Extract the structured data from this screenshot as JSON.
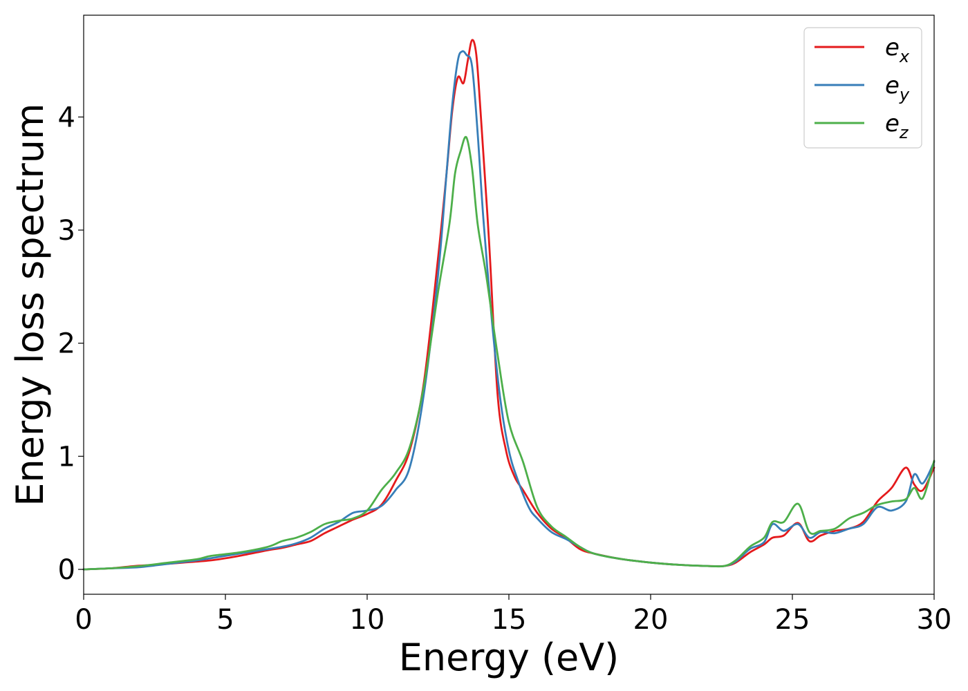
{
  "chart_data": {
    "type": "line",
    "title": "",
    "xlabel": "Energy (eV)",
    "ylabel": "Energy loss spectrum",
    "xlim": [
      0,
      30
    ],
    "ylim": [
      -0.22,
      4.9
    ],
    "xticks": [
      0,
      5,
      10,
      15,
      20,
      25,
      30
    ],
    "yticks": [
      0,
      1,
      2,
      3,
      4
    ],
    "grid": false,
    "legend_position": "top-right",
    "series": [
      {
        "name": "e",
        "subscript": "x",
        "color": "#e41a1c",
        "x": [
          0,
          1,
          1.8,
          2.5,
          3.5,
          4.5,
          5.5,
          6.5,
          7,
          7.5,
          8,
          8.5,
          9,
          9.5,
          10,
          10.5,
          11,
          11.5,
          12,
          12.5,
          12.8,
          13.0,
          13.2,
          13.4,
          13.55,
          13.7,
          13.85,
          14.0,
          14.3,
          14.6,
          14.9,
          15.2,
          15.5,
          16,
          16.5,
          17,
          17.5,
          18,
          19,
          20,
          21,
          22,
          22.6,
          23,
          23.5,
          24,
          24.3,
          24.7,
          25.2,
          25.6,
          26,
          26.5,
          27,
          27.5,
          28,
          28.5,
          29,
          29.3,
          29.6,
          30
        ],
        "y": [
          0,
          0.01,
          0.03,
          0.04,
          0.06,
          0.08,
          0.12,
          0.17,
          0.19,
          0.22,
          0.25,
          0.32,
          0.38,
          0.44,
          0.49,
          0.57,
          0.78,
          1.05,
          1.65,
          2.75,
          3.5,
          4.05,
          4.35,
          4.3,
          4.5,
          4.68,
          4.55,
          4.05,
          2.9,
          1.55,
          1.05,
          0.82,
          0.7,
          0.5,
          0.36,
          0.28,
          0.18,
          0.14,
          0.09,
          0.06,
          0.04,
          0.03,
          0.03,
          0.06,
          0.15,
          0.22,
          0.28,
          0.3,
          0.41,
          0.25,
          0.3,
          0.34,
          0.36,
          0.42,
          0.6,
          0.72,
          0.9,
          0.75,
          0.7,
          0.9
        ]
      },
      {
        "name": "e",
        "subscript": "y",
        "color": "#377eb8",
        "x": [
          0,
          1,
          2,
          3,
          4,
          5,
          6,
          7,
          7.5,
          8,
          8.5,
          9,
          9.5,
          10,
          10.5,
          11,
          11.5,
          12,
          12.5,
          12.8,
          13.0,
          13.2,
          13.35,
          13.5,
          13.7,
          13.9,
          14.1,
          14.4,
          14.7,
          15.0,
          15.3,
          15.7,
          16,
          16.5,
          17,
          17.5,
          18,
          19,
          20,
          21,
          22,
          22.6,
          23,
          23.5,
          24,
          24.3,
          24.7,
          25.2,
          25.6,
          26,
          26.5,
          27,
          27.5,
          28,
          28.5,
          29,
          29.3,
          29.6,
          30
        ],
        "y": [
          0,
          0.01,
          0.02,
          0.05,
          0.08,
          0.12,
          0.16,
          0.2,
          0.23,
          0.28,
          0.36,
          0.42,
          0.5,
          0.52,
          0.56,
          0.7,
          0.9,
          1.55,
          2.6,
          3.5,
          4.1,
          4.5,
          4.58,
          4.55,
          4.45,
          3.85,
          3.1,
          2.2,
          1.5,
          1.05,
          0.8,
          0.55,
          0.45,
          0.33,
          0.27,
          0.2,
          0.14,
          0.09,
          0.06,
          0.04,
          0.03,
          0.03,
          0.07,
          0.18,
          0.24,
          0.4,
          0.34,
          0.4,
          0.28,
          0.33,
          0.32,
          0.36,
          0.4,
          0.55,
          0.52,
          0.6,
          0.84,
          0.76,
          0.95
        ]
      },
      {
        "name": "e",
        "subscript": "z",
        "color": "#4daf4a",
        "x": [
          0,
          1,
          2,
          3,
          4,
          4.5,
          5.5,
          6.5,
          7,
          7.5,
          8,
          8.5,
          9,
          9.5,
          10,
          10.5,
          11,
          11.5,
          12,
          12.5,
          12.9,
          13.1,
          13.3,
          13.5,
          13.7,
          13.9,
          14.2,
          14.6,
          15.0,
          15.5,
          16,
          16.5,
          17,
          17.5,
          18,
          19,
          20,
          21,
          22,
          22.6,
          23,
          23.5,
          24,
          24.3,
          24.7,
          25.2,
          25.6,
          26,
          26.5,
          27,
          27.5,
          28,
          28.5,
          29,
          29.3,
          29.6,
          30
        ],
        "y": [
          0,
          0.01,
          0.03,
          0.06,
          0.09,
          0.12,
          0.15,
          0.2,
          0.25,
          0.28,
          0.33,
          0.4,
          0.43,
          0.45,
          0.52,
          0.7,
          0.85,
          1.08,
          1.62,
          2.45,
          3.05,
          3.5,
          3.7,
          3.82,
          3.55,
          3.05,
          2.6,
          1.9,
          1.3,
          0.95,
          0.55,
          0.38,
          0.29,
          0.2,
          0.14,
          0.09,
          0.06,
          0.04,
          0.03,
          0.03,
          0.08,
          0.2,
          0.28,
          0.42,
          0.42,
          0.58,
          0.33,
          0.34,
          0.36,
          0.45,
          0.5,
          0.57,
          0.6,
          0.62,
          0.72,
          0.63,
          0.96
        ]
      }
    ]
  }
}
